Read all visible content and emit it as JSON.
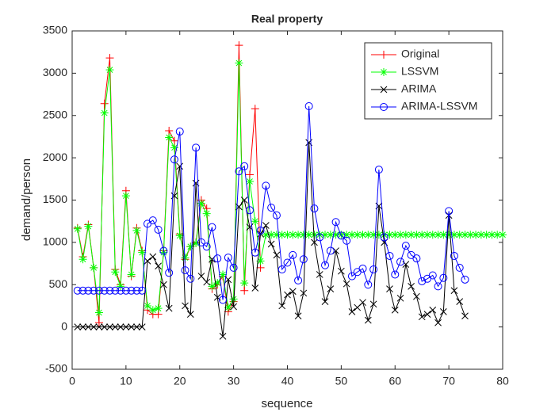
{
  "chart_data": {
    "type": "line",
    "title": "Real property",
    "x_label": "sequence",
    "y_label": "demand/person",
    "xlim": [
      0,
      80
    ],
    "xticks": [
      0,
      10,
      20,
      30,
      40,
      50,
      60,
      70,
      80
    ],
    "ylim": [
      -500,
      3500
    ],
    "yticks": [
      -500,
      0,
      500,
      1000,
      1500,
      2000,
      2500,
      3000,
      3500
    ],
    "legend": "northeast",
    "series": [
      {
        "name": "Original",
        "color": "#ff0000",
        "marker": "+",
        "x": [
          1,
          2,
          3,
          4,
          5,
          6,
          7,
          8,
          9,
          10,
          11,
          12,
          13,
          14,
          15,
          16,
          17,
          18,
          19,
          20,
          21,
          22,
          23,
          24,
          25,
          26,
          27,
          28,
          29,
          30,
          31,
          32,
          33,
          34,
          35
        ],
        "values": [
          1170,
          830,
          1210,
          700,
          50,
          2640,
          3180,
          680,
          500,
          1610,
          600,
          1170,
          900,
          200,
          150,
          150,
          900,
          2320,
          2200,
          1100,
          800,
          950,
          1000,
          1500,
          1400,
          450,
          500,
          600,
          180,
          300,
          3330,
          430,
          1800,
          2580,
          700
        ]
      },
      {
        "name": "LSSVM",
        "color": "#00ff00",
        "marker": "*",
        "x": [
          1,
          2,
          3,
          4,
          5,
          6,
          7,
          8,
          9,
          10,
          11,
          12,
          13,
          14,
          15,
          16,
          17,
          18,
          19,
          20,
          21,
          22,
          23,
          24,
          25,
          26,
          27,
          28,
          29,
          30,
          31,
          32,
          33,
          34,
          35,
          36,
          37,
          38,
          39,
          40,
          41,
          42,
          43,
          44,
          45,
          46,
          47,
          48,
          49,
          50,
          51,
          52,
          53,
          54,
          55,
          56,
          57,
          58,
          59,
          60,
          61,
          62,
          63,
          64,
          65,
          66,
          67,
          68,
          69,
          70,
          71,
          72,
          73,
          74,
          75,
          76,
          77,
          78,
          79,
          80
        ],
        "values": [
          1160,
          800,
          1190,
          700,
          170,
          2530,
          3040,
          650,
          480,
          1550,
          620,
          1140,
          880,
          250,
          200,
          220,
          880,
          2240,
          2120,
          1080,
          820,
          950,
          990,
          1460,
          1340,
          480,
          520,
          620,
          230,
          330,
          3120,
          520,
          1720,
          1250,
          780,
          1090,
          1090,
          1090,
          1090,
          1090,
          1090,
          1090,
          1090,
          1090,
          1090,
          1090,
          1090,
          1090,
          1090,
          1090,
          1090,
          1090,
          1090,
          1090,
          1090,
          1090,
          1090,
          1090,
          1090,
          1090,
          1090,
          1090,
          1090,
          1090,
          1090,
          1090,
          1090,
          1090,
          1090,
          1090,
          1090,
          1090,
          1090,
          1090,
          1090,
          1090,
          1090,
          1090,
          1090,
          1090
        ]
      },
      {
        "name": "ARIMA",
        "color": "#000000",
        "marker": "x",
        "x": [
          1,
          2,
          3,
          4,
          5,
          6,
          7,
          8,
          9,
          10,
          11,
          12,
          13,
          14,
          15,
          16,
          17,
          18,
          19,
          20,
          21,
          22,
          23,
          24,
          25,
          26,
          27,
          28,
          29,
          30,
          31,
          32,
          33,
          34,
          35,
          36,
          37,
          38,
          39,
          40,
          41,
          42,
          43,
          44,
          45,
          46,
          47,
          48,
          49,
          50,
          51,
          52,
          53,
          54,
          55,
          56,
          57,
          58,
          59,
          60,
          61,
          62,
          63,
          64,
          65,
          66,
          67,
          68,
          69,
          70,
          71,
          72,
          73
        ],
        "values": [
          0,
          0,
          0,
          0,
          0,
          0,
          0,
          0,
          0,
          0,
          0,
          0,
          0,
          780,
          830,
          720,
          500,
          220,
          1550,
          1900,
          250,
          150,
          1700,
          600,
          530,
          800,
          350,
          -110,
          560,
          240,
          1420,
          1500,
          1180,
          460,
          1100,
          1200,
          980,
          850,
          250,
          380,
          420,
          130,
          400,
          2180,
          1000,
          620,
          300,
          450,
          900,
          660,
          510,
          180,
          230,
          290,
          80,
          270,
          1430,
          1000,
          450,
          200,
          340,
          740,
          480,
          360,
          120,
          150,
          200,
          50,
          180,
          1320,
          430,
          300,
          130
        ]
      },
      {
        "name": "ARIMA-LSSVM",
        "color": "#0000ff",
        "marker": "o",
        "x": [
          1,
          2,
          3,
          4,
          5,
          6,
          7,
          8,
          9,
          10,
          11,
          12,
          13,
          14,
          15,
          16,
          17,
          18,
          19,
          20,
          21,
          22,
          23,
          24,
          25,
          26,
          27,
          28,
          29,
          30,
          31,
          32,
          33,
          34,
          35,
          36,
          37,
          38,
          39,
          40,
          41,
          42,
          43,
          44,
          45,
          46,
          47,
          48,
          49,
          50,
          51,
          52,
          53,
          54,
          55,
          56,
          57,
          58,
          59,
          60,
          61,
          62,
          63,
          64,
          65,
          66,
          67,
          68,
          69,
          70,
          71,
          72,
          73
        ],
        "values": [
          430,
          430,
          430,
          430,
          430,
          430,
          430,
          430,
          430,
          430,
          430,
          430,
          430,
          1220,
          1260,
          1150,
          900,
          640,
          1980,
          2310,
          670,
          570,
          2120,
          1000,
          950,
          1180,
          810,
          320,
          820,
          700,
          1840,
          1900,
          1380,
          880,
          1140,
          1670,
          1410,
          1320,
          680,
          760,
          850,
          550,
          800,
          2610,
          1400,
          1060,
          730,
          900,
          1240,
          1080,
          1020,
          600,
          650,
          690,
          500,
          680,
          1860,
          1060,
          840,
          620,
          770,
          960,
          850,
          810,
          540,
          570,
          610,
          480,
          580,
          1370,
          840,
          700,
          560
        ]
      }
    ]
  }
}
